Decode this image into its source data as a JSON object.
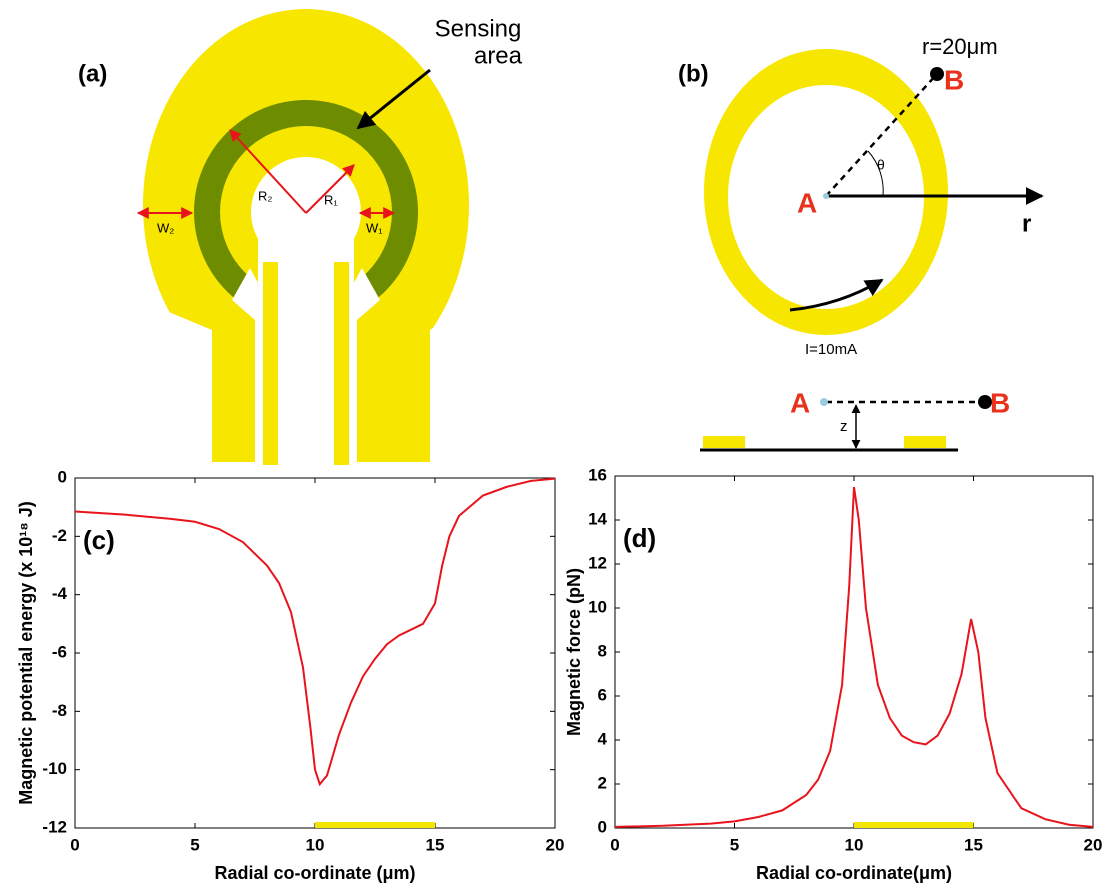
{
  "diagram_a": {
    "label": "(a)",
    "annotation": [
      "Sensing",
      "area"
    ],
    "r2": "R₂",
    "r1": "R₁",
    "w2": "W₂",
    "w1": "W₁"
  },
  "diagram_b": {
    "label": "(b)",
    "radius": "r=20μm",
    "point_a": "A",
    "point_b": "B",
    "angle": "θ",
    "axis": "r",
    "current": "I=10mA",
    "side_a": "A",
    "side_b": "B",
    "height": "z"
  },
  "chart_data": [
    {
      "type": "line",
      "annotation": "(c)",
      "xlabel": "Radial co-ordinate (μm)",
      "ylabel": "Magnetic potential energy (x 10¹⁸ J)",
      "color": "#e8141c",
      "x": [
        0,
        2,
        4,
        5,
        6,
        7,
        8,
        8.5,
        9,
        9.5,
        9.8,
        10,
        10.2,
        10.5,
        11,
        11.5,
        12,
        12.5,
        13,
        13.5,
        14,
        14.5,
        15,
        15.3,
        15.6,
        16,
        17,
        18,
        19,
        20
      ],
      "values": [
        -1.15,
        -1.25,
        -1.4,
        -1.5,
        -1.75,
        -2.2,
        -3.0,
        -3.6,
        -4.6,
        -6.5,
        -8.5,
        -10,
        -10.5,
        -10.2,
        -8.8,
        -7.7,
        -6.8,
        -6.2,
        -5.7,
        -5.4,
        -5.2,
        -5.0,
        -4.3,
        -3.0,
        -2.0,
        -1.3,
        -0.6,
        -0.3,
        -0.1,
        -0.02
      ],
      "highlight": [
        10,
        15
      ],
      "highlight_color": "#f2e600",
      "xlim": [
        0,
        20
      ],
      "xticks": [
        0,
        5,
        10,
        15,
        20
      ],
      "ylim": [
        -12,
        0
      ],
      "yticks": [
        -12,
        -10,
        -8,
        -6,
        -4,
        -2,
        0
      ]
    },
    {
      "type": "line",
      "annotation": "(d)",
      "xlabel": "Radial co-ordinate(μm)",
      "ylabel": "Magnetic force (pN)",
      "color": "#e8141c",
      "x": [
        0,
        2,
        4,
        5,
        6,
        7,
        8,
        8.5,
        9,
        9.5,
        9.8,
        10,
        10.2,
        10.5,
        11,
        11.5,
        12,
        12.5,
        13,
        13.5,
        14,
        14.5,
        14.9,
        15.2,
        15.5,
        16,
        17,
        18,
        19,
        20
      ],
      "values": [
        0.05,
        0.1,
        0.2,
        0.3,
        0.5,
        0.8,
        1.5,
        2.2,
        3.5,
        6.5,
        11,
        15.5,
        14,
        10,
        6.5,
        5,
        4.2,
        3.9,
        3.8,
        4.2,
        5.2,
        7,
        9.5,
        8,
        5,
        2.5,
        0.9,
        0.4,
        0.15,
        0.05
      ],
      "highlight": [
        10,
        15
      ],
      "highlight_color": "#f2e600",
      "xlim": [
        0,
        20
      ],
      "xticks": [
        0,
        5,
        10,
        15,
        20
      ],
      "ylim": [
        0,
        16
      ],
      "yticks": [
        0,
        2,
        4,
        6,
        8,
        10,
        12,
        14,
        16
      ]
    }
  ]
}
